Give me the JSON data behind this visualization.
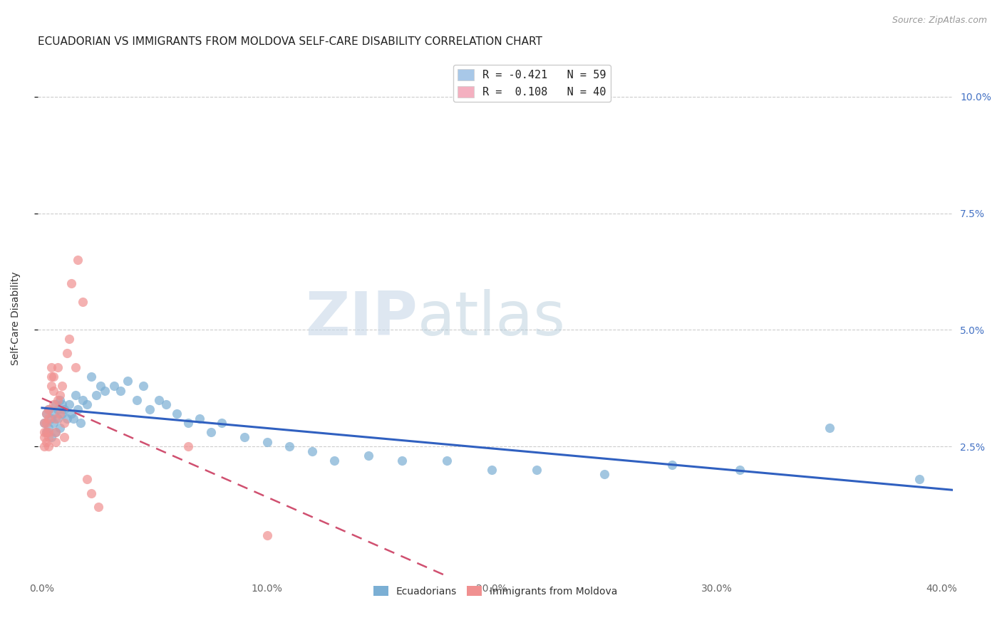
{
  "title": "ECUADORIAN VS IMMIGRANTS FROM MOLDOVA SELF-CARE DISABILITY CORRELATION CHART",
  "source": "Source: ZipAtlas.com",
  "ylabel": "Self-Care Disability",
  "ytick_labels": [
    "2.5%",
    "5.0%",
    "7.5%",
    "10.0%"
  ],
  "ytick_values": [
    0.025,
    0.05,
    0.075,
    0.1
  ],
  "xtick_labels": [
    "0.0%",
    "10.0%",
    "20.0%",
    "30.0%",
    "40.0%"
  ],
  "xtick_values": [
    0.0,
    0.1,
    0.2,
    0.3,
    0.4
  ],
  "xlim": [
    -0.002,
    0.405
  ],
  "ylim": [
    -0.003,
    0.108
  ],
  "ecuadorians": {
    "x": [
      0.001,
      0.002,
      0.002,
      0.003,
      0.003,
      0.004,
      0.004,
      0.005,
      0.005,
      0.006,
      0.006,
      0.007,
      0.007,
      0.008,
      0.008,
      0.009,
      0.009,
      0.01,
      0.011,
      0.012,
      0.013,
      0.014,
      0.015,
      0.016,
      0.017,
      0.018,
      0.02,
      0.022,
      0.024,
      0.026,
      0.028,
      0.032,
      0.035,
      0.038,
      0.042,
      0.045,
      0.048,
      0.052,
      0.055,
      0.06,
      0.065,
      0.07,
      0.075,
      0.08,
      0.09,
      0.1,
      0.11,
      0.12,
      0.13,
      0.145,
      0.16,
      0.18,
      0.2,
      0.22,
      0.25,
      0.28,
      0.31,
      0.35,
      0.39
    ],
    "y": [
      0.03,
      0.032,
      0.028,
      0.033,
      0.029,
      0.031,
      0.027,
      0.032,
      0.03,
      0.034,
      0.028,
      0.033,
      0.031,
      0.035,
      0.029,
      0.034,
      0.032,
      0.033,
      0.031,
      0.034,
      0.032,
      0.031,
      0.036,
      0.033,
      0.03,
      0.035,
      0.034,
      0.04,
      0.036,
      0.038,
      0.037,
      0.038,
      0.037,
      0.039,
      0.035,
      0.038,
      0.033,
      0.035,
      0.034,
      0.032,
      0.03,
      0.031,
      0.028,
      0.03,
      0.027,
      0.026,
      0.025,
      0.024,
      0.022,
      0.023,
      0.022,
      0.022,
      0.02,
      0.02,
      0.019,
      0.021,
      0.02,
      0.029,
      0.018
    ],
    "color": "#7bafd4",
    "R": -0.421,
    "N": 59
  },
  "moldova": {
    "x": [
      0.001,
      0.001,
      0.001,
      0.001,
      0.002,
      0.002,
      0.002,
      0.002,
      0.003,
      0.003,
      0.003,
      0.003,
      0.003,
      0.004,
      0.004,
      0.004,
      0.005,
      0.005,
      0.005,
      0.006,
      0.006,
      0.006,
      0.007,
      0.007,
      0.008,
      0.008,
      0.009,
      0.01,
      0.01,
      0.011,
      0.012,
      0.013,
      0.015,
      0.016,
      0.018,
      0.02,
      0.022,
      0.025,
      0.065,
      0.1
    ],
    "y": [
      0.027,
      0.03,
      0.028,
      0.025,
      0.03,
      0.028,
      0.032,
      0.026,
      0.033,
      0.031,
      0.028,
      0.025,
      0.027,
      0.038,
      0.04,
      0.042,
      0.034,
      0.037,
      0.04,
      0.028,
      0.026,
      0.031,
      0.035,
      0.042,
      0.032,
      0.036,
      0.038,
      0.03,
      0.027,
      0.045,
      0.048,
      0.06,
      0.042,
      0.065,
      0.056,
      0.018,
      0.015,
      0.012,
      0.025,
      0.006
    ],
    "color": "#f09090",
    "R": 0.108,
    "N": 40
  },
  "trendline_ecuador": {
    "color": "#3060c0",
    "linestyle": "solid",
    "linewidth": 2.2
  },
  "trendline_moldova": {
    "color": "#d05070",
    "linestyle": "dashed",
    "linewidth": 1.8,
    "dash_pattern": [
      6,
      4
    ]
  },
  "legend_entries": [
    {
      "label": "R = -0.421   N = 59",
      "facecolor": "#a8c8e8"
    },
    {
      "label": "R =  0.108   N = 40",
      "facecolor": "#f4b0c0"
    }
  ],
  "watermark_zip": "ZIP",
  "watermark_atlas": "atlas",
  "background_color": "#ffffff",
  "grid_color": "#cccccc",
  "title_fontsize": 11,
  "tick_label_color_right": "#4472c4",
  "tick_label_color_bottom": "#666666"
}
